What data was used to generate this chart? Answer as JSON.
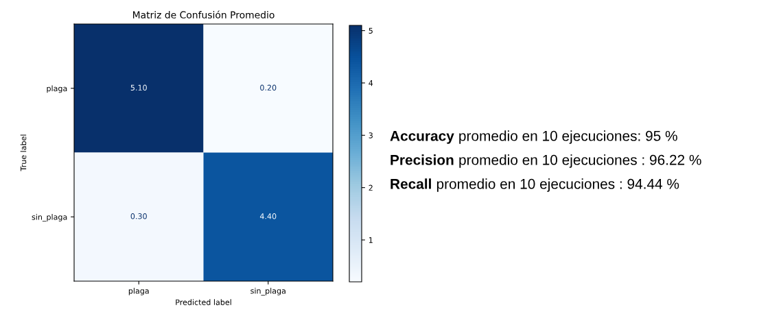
{
  "chart_data": [
    {
      "type": "heatmap",
      "title": "Matriz de Confusión Promedio",
      "xlabel": "Predicted label",
      "ylabel": "True label",
      "categories": [
        "plaga",
        "sin_plaga"
      ],
      "y_categories": [
        "plaga",
        "sin_plaga"
      ],
      "cells": [
        [
          5.1,
          0.2
        ],
        [
          0.3,
          4.4
        ]
      ],
      "cell_labels": [
        [
          "5.10",
          "0.20"
        ],
        [
          "0.30",
          "4.40"
        ]
      ],
      "clim": [
        0.2,
        5.1
      ],
      "cticks": [
        1,
        2,
        3,
        4,
        5
      ]
    },
    {
      "type": "other",
      "annotations": [
        "Accuracy promedio en 10 ejecuciones: 95 %",
        "Precision promedio en 10 ejecuciones : 96.22 %",
        "Recall promedio en 10 ejecuciones : 94.44 %"
      ]
    }
  ]
}
